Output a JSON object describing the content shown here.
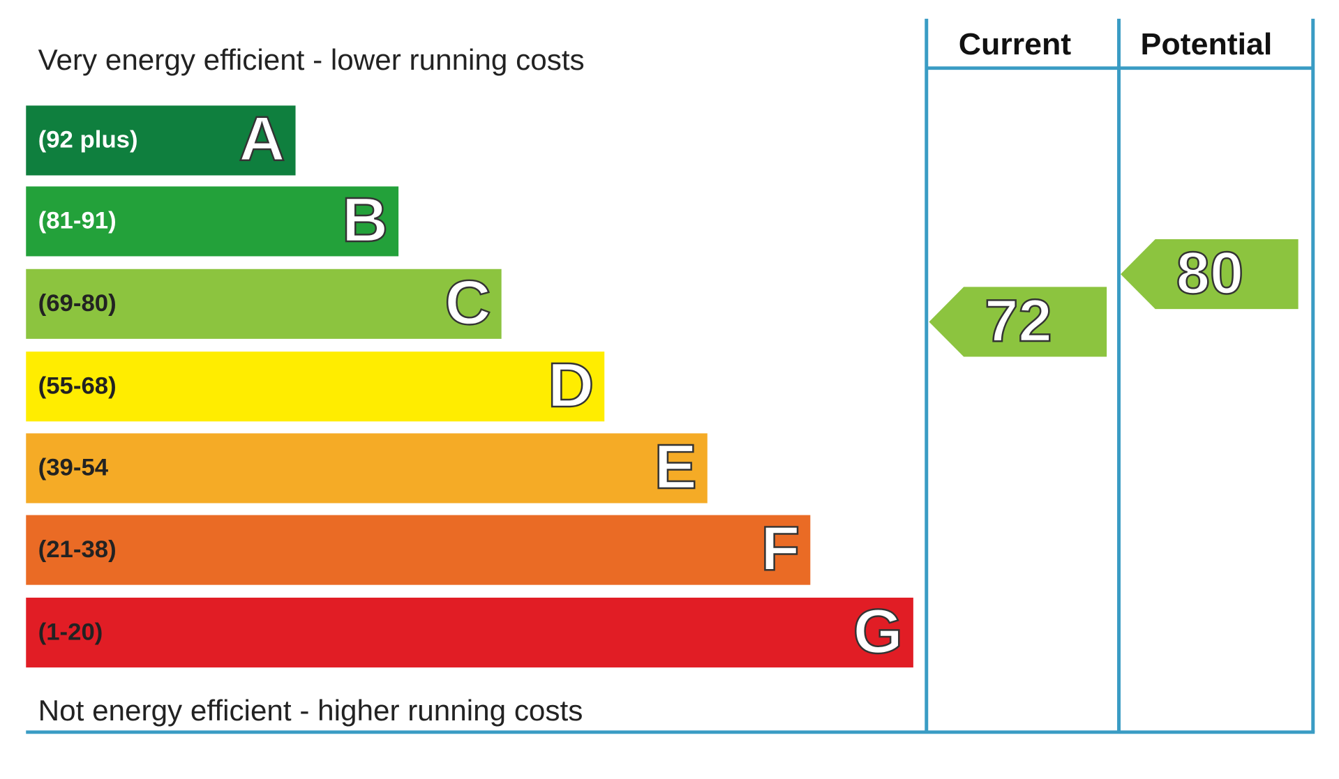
{
  "top_label": "Very energy efficient - lower running costs",
  "bottom_label": "Not energy efficient - higher running costs",
  "bands": [
    {
      "range": "(92 plus)",
      "letter": "A",
      "color": "#0f7f3e",
      "text_color": "#ffffff"
    },
    {
      "range": "(81-91)",
      "letter": "B",
      "color": "#23a13a",
      "text_color": "#ffffff"
    },
    {
      "range": "(69-80)",
      "letter": "C",
      "color": "#8cc43f",
      "text_color": "#222222"
    },
    {
      "range": "(55-68)",
      "letter": "D",
      "color": "#ffed00",
      "text_color": "#222222"
    },
    {
      "range": "(39-54",
      "letter": "E",
      "color": "#f5ab26",
      "text_color": "#222222"
    },
    {
      "range": "(21-38)",
      "letter": "F",
      "color": "#ea6b25",
      "text_color": "#222222"
    },
    {
      "range": "(1-20)",
      "letter": "G",
      "color": "#e11d25",
      "text_color": "#222222"
    }
  ],
  "columns": [
    {
      "header": "Current",
      "rating": "72",
      "color": "#8cc43f"
    },
    {
      "header": "Potential",
      "rating": "80",
      "color": "#8cc43f"
    }
  ]
}
